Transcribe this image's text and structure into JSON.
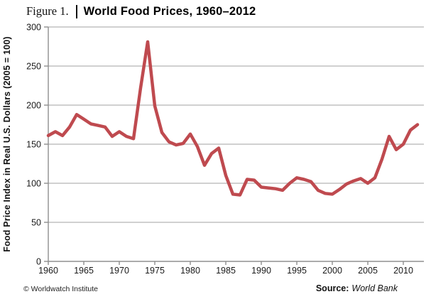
{
  "figure": {
    "label": "Figure 1.",
    "title": "World Food Prices, 1960–2012"
  },
  "footer": {
    "copyright": "© Worldwatch Institute",
    "source_label": "Source:",
    "source_value": "World Bank"
  },
  "colors": {
    "line": "#bf4a4f",
    "grid": "#b3b3b3",
    "axis": "#8f8f8f",
    "text": "#1a1a1a"
  },
  "chart_data": {
    "type": "line",
    "title": "World Food Prices, 1960–2012",
    "xlabel": "",
    "ylabel": "Food Price Index in Real U.S. Dollars (2005 = 100)",
    "xlim": [
      1960,
      2013
    ],
    "ylim": [
      0,
      300
    ],
    "x_ticks": [
      1960,
      1965,
      1970,
      1975,
      1980,
      1985,
      1990,
      1995,
      2000,
      2005,
      2010
    ],
    "y_ticks": [
      0,
      50,
      100,
      150,
      200,
      250,
      300
    ],
    "grid": "horizontal",
    "legend": "none",
    "series": [
      {
        "name": "Food Price Index (2005 = 100)",
        "x": [
          1960,
          1961,
          1962,
          1963,
          1964,
          1965,
          1966,
          1967,
          1968,
          1969,
          1970,
          1971,
          1972,
          1973,
          1974,
          1975,
          1976,
          1977,
          1978,
          1979,
          1980,
          1981,
          1982,
          1983,
          1984,
          1985,
          1986,
          1987,
          1988,
          1989,
          1990,
          1991,
          1992,
          1993,
          1994,
          1995,
          1996,
          1997,
          1998,
          1999,
          2000,
          2001,
          2002,
          2003,
          2004,
          2005,
          2006,
          2007,
          2008,
          2009,
          2010,
          2011,
          2012
        ],
        "y": [
          161,
          166,
          161,
          172,
          188,
          182,
          176,
          174,
          172,
          160,
          166,
          160,
          157,
          222,
          281,
          199,
          165,
          153,
          149,
          151,
          163,
          147,
          123,
          138,
          145,
          110,
          86,
          85,
          105,
          104,
          95,
          94,
          93,
          91,
          100,
          107,
          105,
          102,
          91,
          87,
          86,
          92,
          99,
          103,
          106,
          100,
          107,
          131,
          160,
          143,
          150,
          168,
          175
        ]
      }
    ]
  }
}
